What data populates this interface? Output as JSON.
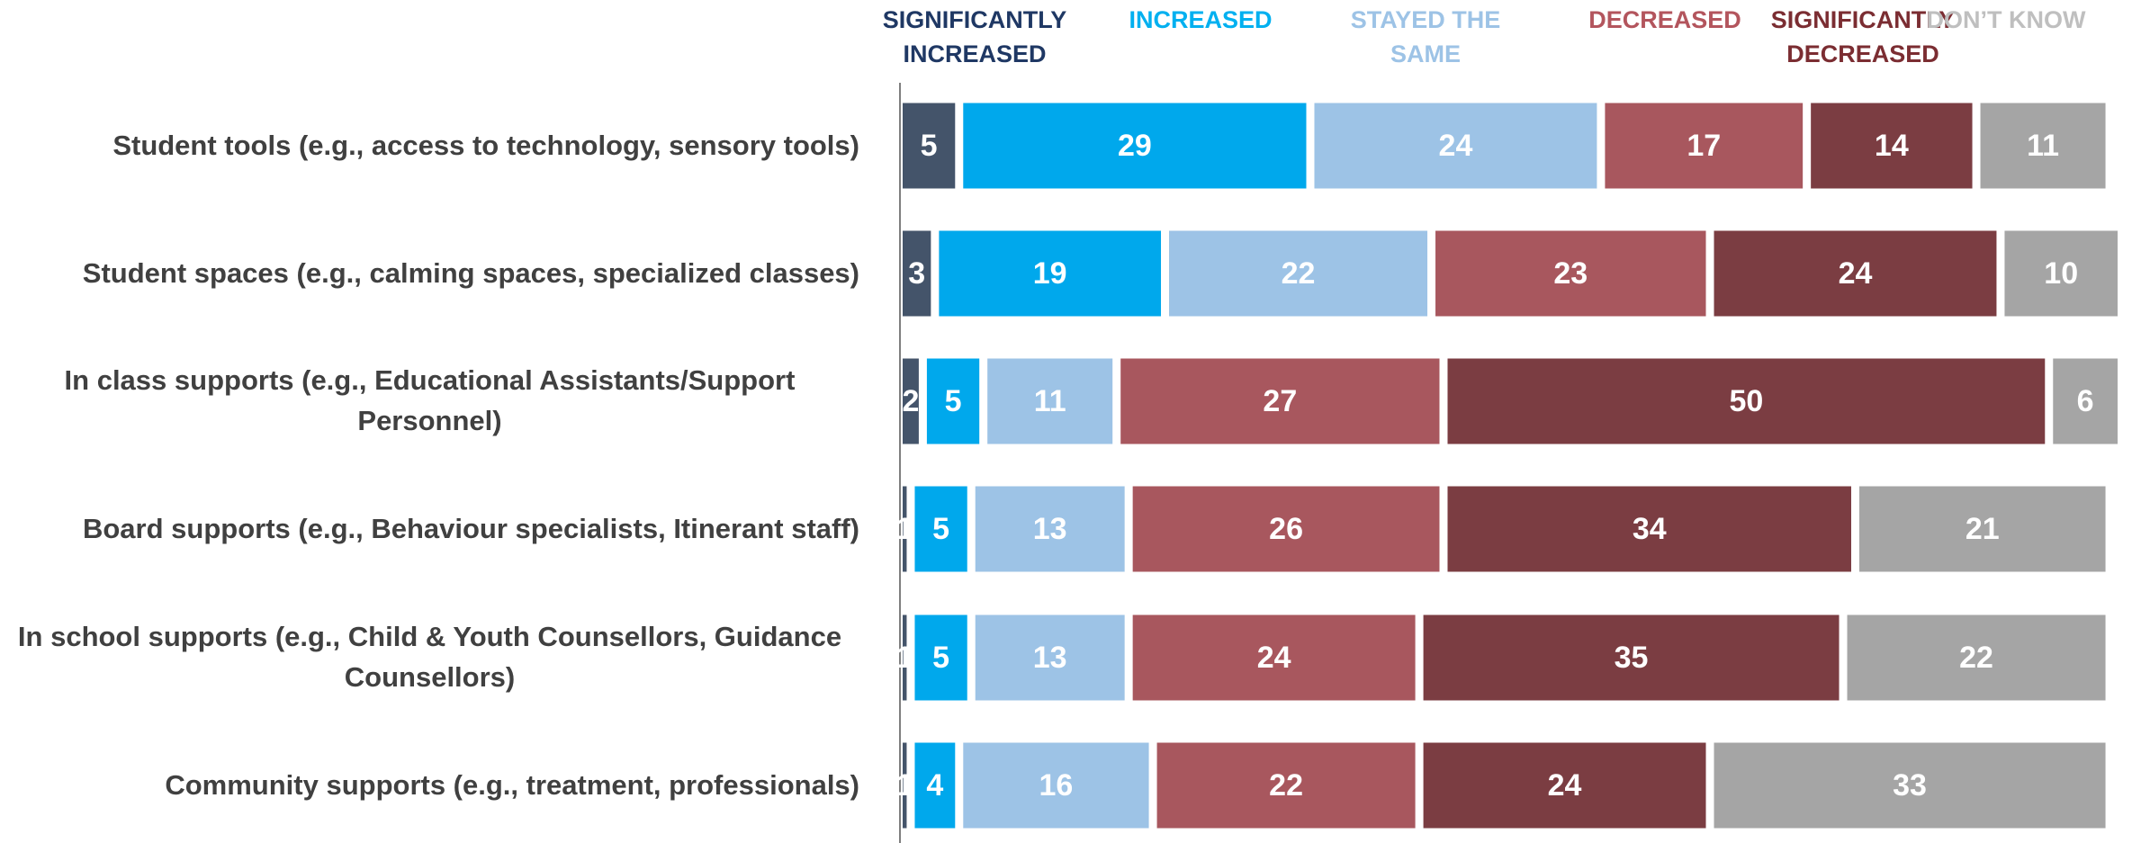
{
  "chart_data": {
    "type": "stacked_barh",
    "categories": [
      "Student tools (e.g., access to technology, sensory tools)",
      "Student spaces (e.g., calming spaces, specialized classes)",
      "In class supports (e.g., Educational Assistants/Support Personnel)",
      "Board supports (e.g., Behaviour specialists, Itinerant staff)",
      "In school supports (e.g., Child & Youth Counsellors, Guidance Counsellors)",
      "Community supports (e.g., treatment, professionals)"
    ],
    "series": [
      {
        "name": "SIGNIFICANTLY INCREASED",
        "color": "#44546a",
        "label_color": "#1f3864",
        "values": [
          5,
          3,
          2,
          1,
          1,
          1
        ]
      },
      {
        "name": "INCREASED",
        "color": "#00a8ec",
        "label_color": "#00b0f0",
        "values": [
          29,
          19,
          5,
          5,
          5,
          4
        ]
      },
      {
        "name": "STAYED THE SAME",
        "color": "#9dc3e6",
        "label_color": "#9dc3e6",
        "values": [
          24,
          22,
          11,
          13,
          13,
          16
        ]
      },
      {
        "name": "DECREASED",
        "color": "#a8575e",
        "label_color": "#b3555d",
        "values": [
          17,
          23,
          27,
          26,
          24,
          22
        ]
      },
      {
        "name": "SIGNIFICANTLY DECREASED",
        "color": "#7b3d42",
        "label_color": "#7b2d32",
        "values": [
          14,
          24,
          50,
          34,
          35,
          24
        ]
      },
      {
        "name": "DON’T KNOW",
        "color": "#a5a5a5",
        "label_color": "#bfbfbf",
        "values": [
          11,
          10,
          6,
          21,
          22,
          33
        ]
      }
    ]
  }
}
